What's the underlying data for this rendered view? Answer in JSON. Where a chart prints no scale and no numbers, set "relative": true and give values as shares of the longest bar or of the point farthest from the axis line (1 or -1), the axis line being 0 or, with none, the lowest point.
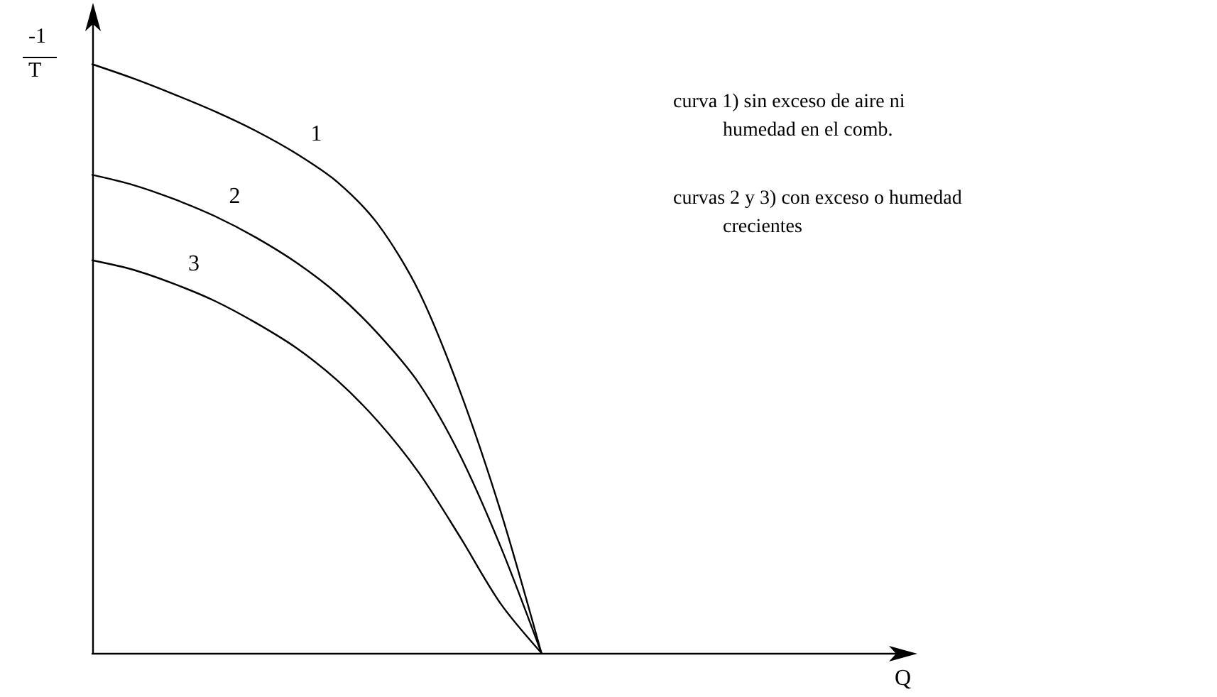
{
  "chart_data": {
    "type": "line",
    "relative": true,
    "xlabel": "Q",
    "ylabel": "-1\nT",
    "categories": [
      null,
      null,
      null,
      null,
      null,
      null,
      null,
      null,
      null,
      null,
      null,
      null,
      null,
      null,
      null,
      null,
      null,
      null,
      null,
      null,
      null
    ],
    "series": [
      {
        "name": "1",
        "color": "#000000",
        "values": [
          1.0,
          0.976,
          0.949,
          0.92,
          0.887,
          0.848,
          0.8,
          0.728,
          0.614,
          0.446,
          0.241,
          0,
          null,
          null,
          null,
          null,
          null,
          null,
          null,
          null,
          null
        ]
      },
      {
        "name": "2",
        "color": "#000000",
        "values": [
          0.812,
          0.795,
          0.771,
          0.742,
          0.706,
          0.663,
          0.61,
          0.542,
          0.458,
          0.337,
          0.181,
          0,
          null,
          null,
          null,
          null,
          null,
          null,
          null,
          null,
          null
        ]
      },
      {
        "name": "3",
        "color": "#000000",
        "values": [
          0.667,
          0.651,
          0.627,
          0.598,
          0.561,
          0.518,
          0.463,
          0.393,
          0.306,
          0.198,
          0.084,
          0,
          null,
          null,
          null,
          null,
          null,
          null,
          null,
          null,
          null
        ]
      }
    ],
    "annotations": [
      "curva 1) sin exceso de aire ni\n          humedad en el comb.",
      "curvas 2 y 3) con exceso o humedad\n          crecientes"
    ],
    "grid": false,
    "legend": false,
    "marker": "none",
    "line_style": "solid"
  }
}
